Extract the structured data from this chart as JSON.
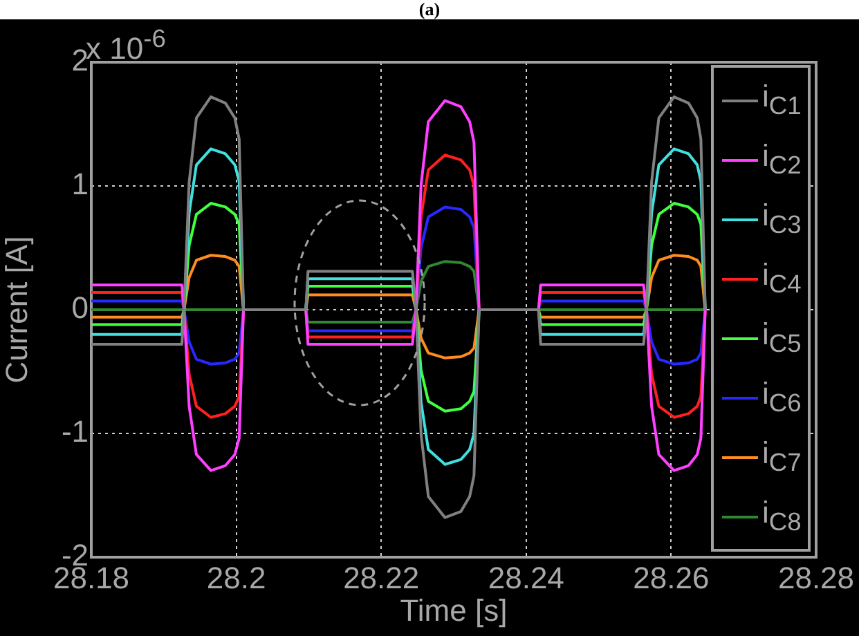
{
  "chart_data": {
    "type": "line",
    "title": "(a)",
    "xlabel": "Time [s]",
    "ylabel": "Current [A]",
    "annotations": [
      "x 10$^{-6}$"
    ],
    "x": [
      28.18,
      28.1925,
      28.1928,
      28.1935,
      28.1945,
      28.1965,
      28.1985,
      28.1998,
      28.2004,
      28.201,
      28.2096,
      28.2099,
      28.2243,
      28.2248,
      28.2255,
      28.2265,
      28.2288,
      28.231,
      28.2322,
      28.2328,
      28.2335,
      28.2417,
      28.242,
      28.2562,
      28.2566,
      28.2573,
      28.2583,
      28.2604,
      28.2624,
      28.2636,
      28.2641,
      28.2647
    ],
    "series": [
      {
        "name": "i$_{C1}$",
        "color": "#808080",
        "values": [
          -0.28,
          -0.28,
          0,
          1.03,
          1.55,
          1.72,
          1.67,
          1.55,
          1.38,
          0,
          0,
          0.31,
          0.31,
          0,
          -1.01,
          -1.51,
          -1.68,
          -1.63,
          -1.51,
          -1.34,
          0,
          0,
          -0.28,
          -0.28,
          0,
          1.03,
          1.55,
          1.72,
          1.67,
          1.55,
          1.38,
          0
        ]
      },
      {
        "name": "i$_{C2}$",
        "color": "#ff40ff",
        "values": [
          0.2,
          0.2,
          0,
          -0.78,
          -1.17,
          -1.3,
          -1.26,
          -1.17,
          -1.04,
          0,
          0,
          -0.28,
          -0.28,
          0,
          1.01,
          1.52,
          1.69,
          1.64,
          1.52,
          1.35,
          0,
          0,
          0.2,
          0.2,
          0,
          -0.78,
          -1.17,
          -1.3,
          -1.26,
          -1.17,
          -1.04,
          0
        ]
      },
      {
        "name": "i$_{C3}$",
        "color": "#40e0e0",
        "values": [
          -0.2,
          -0.2,
          0,
          0.78,
          1.17,
          1.3,
          1.26,
          1.17,
          1.04,
          0,
          0,
          0.25,
          0.25,
          0,
          -0.75,
          -1.13,
          -1.25,
          -1.21,
          -1.13,
          -1.0,
          0,
          0,
          -0.2,
          -0.2,
          0,
          0.78,
          1.17,
          1.3,
          1.26,
          1.17,
          1.04,
          0
        ]
      },
      {
        "name": "i$_{C4}$",
        "color": "#ff2020",
        "values": [
          0.14,
          0.14,
          0,
          -0.52,
          -0.78,
          -0.87,
          -0.84,
          -0.78,
          -0.7,
          0,
          0,
          -0.22,
          -0.22,
          0,
          0.75,
          1.13,
          1.25,
          1.21,
          1.13,
          1.0,
          0,
          0,
          0.14,
          0.14,
          0,
          -0.52,
          -0.78,
          -0.87,
          -0.84,
          -0.78,
          -0.7,
          0
        ]
      },
      {
        "name": "i$_{C5}$",
        "color": "#40ff40",
        "values": [
          -0.12,
          -0.12,
          0,
          0.52,
          0.77,
          0.86,
          0.83,
          0.77,
          0.69,
          0,
          0,
          0.19,
          0.19,
          0,
          -0.49,
          -0.74,
          -0.82,
          -0.8,
          -0.74,
          -0.66,
          0,
          0,
          -0.12,
          -0.12,
          0,
          0.52,
          0.77,
          0.86,
          0.83,
          0.77,
          0.69,
          0
        ]
      },
      {
        "name": "i$_{C6}$",
        "color": "#2828ff",
        "values": [
          0.07,
          0.07,
          0,
          -0.26,
          -0.4,
          -0.44,
          -0.43,
          -0.4,
          -0.35,
          0,
          0,
          -0.17,
          -0.17,
          0,
          0.5,
          0.75,
          0.83,
          0.81,
          0.75,
          0.66,
          0,
          0,
          0.07,
          0.07,
          0,
          -0.26,
          -0.4,
          -0.44,
          -0.43,
          -0.4,
          -0.35,
          0
        ]
      },
      {
        "name": "i$_{C7}$",
        "color": "#ff8c20",
        "values": [
          -0.06,
          -0.06,
          0,
          0.26,
          0.4,
          0.44,
          0.43,
          0.4,
          0.35,
          0,
          0,
          0.12,
          0.12,
          0,
          -0.23,
          -0.35,
          -0.39,
          -0.38,
          -0.35,
          -0.31,
          0,
          0,
          -0.06,
          -0.06,
          0,
          0.26,
          0.4,
          0.44,
          0.43,
          0.4,
          0.35,
          0
        ]
      },
      {
        "name": "i$_{C8}$",
        "color": "#308830",
        "values": [
          0,
          0,
          0,
          0,
          0,
          0,
          0,
          0,
          0,
          0,
          0,
          -0.1,
          -0.1,
          0,
          0.23,
          0.35,
          0.39,
          0.38,
          0.35,
          0.31,
          0,
          0,
          0,
          0,
          0,
          0,
          0,
          0,
          0,
          0,
          0,
          0
        ]
      }
    ],
    "xlim": [
      28.18,
      28.28
    ],
    "xticks": [
      28.18,
      28.2,
      28.22,
      28.24,
      28.26,
      28.28
    ],
    "ylim": [
      -2,
      2
    ],
    "yticks": [
      -2,
      -1,
      0,
      1,
      2
    ],
    "grid": true,
    "legend": "right",
    "marker": "none",
    "line_style": "solid"
  }
}
